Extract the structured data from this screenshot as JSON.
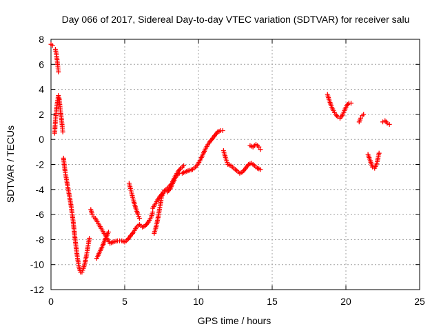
{
  "chart_data": {
    "type": "scatter",
    "title": "Day 066 of 2017, Sidereal Day-to-day VTEC variation (SDTVAR) for receiver salu",
    "xlabel": "GPS time / hours",
    "ylabel": "SDTVAR / TECUs",
    "xlim": [
      0,
      25
    ],
    "ylim": [
      -12,
      8
    ],
    "xticks": [
      0,
      5,
      10,
      15,
      20,
      25
    ],
    "yticks": [
      -12,
      -10,
      -8,
      -6,
      -4,
      -2,
      0,
      2,
      4,
      6,
      8
    ],
    "grid": true,
    "marker": "plus",
    "color": "#ff0000",
    "series": [
      {
        "segments": [
          [
            [
              0.0,
              7.6
            ],
            [
              0.1,
              7.5
            ]
          ],
          [
            [
              0.3,
              7.2
            ],
            [
              0.35,
              6.9
            ],
            [
              0.4,
              6.5
            ],
            [
              0.45,
              6.0
            ],
            [
              0.5,
              5.4
            ]
          ],
          [
            [
              0.25,
              0.5
            ],
            [
              0.3,
              1.5
            ],
            [
              0.35,
              2.2
            ],
            [
              0.4,
              2.7
            ],
            [
              0.45,
              3.1
            ],
            [
              0.5,
              3.5
            ],
            [
              0.55,
              3.3
            ],
            [
              0.6,
              2.8
            ],
            [
              0.65,
              2.2
            ],
            [
              0.7,
              1.7
            ],
            [
              0.75,
              1.2
            ],
            [
              0.8,
              0.6
            ]
          ],
          [
            [
              0.85,
              -1.5
            ],
            [
              0.95,
              -2.5
            ],
            [
              1.05,
              -3.2
            ],
            [
              1.2,
              -4.2
            ],
            [
              1.35,
              -5.2
            ],
            [
              1.5,
              -6.5
            ],
            [
              1.6,
              -7.6
            ],
            [
              1.7,
              -8.6
            ],
            [
              1.8,
              -9.5
            ],
            [
              1.9,
              -10.2
            ],
            [
              2.0,
              -10.6
            ],
            [
              2.1,
              -10.6
            ],
            [
              2.2,
              -10.3
            ],
            [
              2.3,
              -9.9
            ],
            [
              2.4,
              -9.3
            ],
            [
              2.5,
              -8.6
            ],
            [
              2.6,
              -7.9
            ]
          ],
          [
            [
              2.7,
              -5.6
            ],
            [
              2.8,
              -6.0
            ],
            [
              2.9,
              -6.2
            ],
            [
              3.0,
              -6.3
            ],
            [
              3.2,
              -6.7
            ],
            [
              3.4,
              -7.1
            ],
            [
              3.6,
              -7.5
            ],
            [
              3.8,
              -7.9
            ],
            [
              4.0,
              -8.3
            ],
            [
              4.2,
              -8.2
            ],
            [
              4.5,
              -8.1
            ],
            [
              4.8,
              -8.1
            ],
            [
              5.0,
              -8.2
            ],
            [
              5.2,
              -8.0
            ],
            [
              5.4,
              -7.7
            ],
            [
              5.6,
              -7.4
            ],
            [
              5.8,
              -7.0
            ],
            [
              6.0,
              -6.8
            ],
            [
              6.2,
              -7.0
            ],
            [
              6.4,
              -6.9
            ],
            [
              6.6,
              -6.6
            ],
            [
              6.8,
              -6.2
            ],
            [
              6.9,
              -5.8
            ]
          ],
          [
            [
              3.1,
              -9.5
            ],
            [
              3.3,
              -9.0
            ],
            [
              3.5,
              -8.5
            ],
            [
              3.7,
              -7.9
            ],
            [
              3.9,
              -7.4
            ]
          ],
          [
            [
              5.3,
              -3.5
            ],
            [
              5.45,
              -4.2
            ],
            [
              5.6,
              -4.9
            ],
            [
              5.75,
              -5.5
            ],
            [
              5.9,
              -6.0
            ],
            [
              6.0,
              -6.3
            ]
          ],
          [
            [
              7.0,
              -7.5
            ],
            [
              7.1,
              -7.1
            ],
            [
              7.2,
              -6.6
            ],
            [
              7.3,
              -6.0
            ],
            [
              7.4,
              -5.3
            ],
            [
              7.5,
              -4.6
            ],
            [
              7.6,
              -4.2
            ],
            [
              7.8,
              -4.0
            ],
            [
              8.0,
              -3.8
            ],
            [
              8.2,
              -3.5
            ],
            [
              8.4,
              -3.0
            ],
            [
              8.6,
              -2.6
            ],
            [
              8.8,
              -2.3
            ],
            [
              9.0,
              -2.1
            ]
          ],
          [
            [
              6.9,
              -5.5
            ],
            [
              7.1,
              -5.1
            ],
            [
              7.3,
              -4.7
            ],
            [
              7.5,
              -4.4
            ],
            [
              7.7,
              -4.2
            ],
            [
              7.9,
              -4.2
            ],
            [
              8.1,
              -3.9
            ],
            [
              8.3,
              -3.4
            ],
            [
              8.5,
              -2.9
            ],
            [
              8.7,
              -2.7
            ],
            [
              8.9,
              -2.7
            ],
            [
              9.1,
              -2.6
            ],
            [
              9.3,
              -2.5
            ],
            [
              9.6,
              -2.4
            ],
            [
              9.9,
              -2.1
            ],
            [
              10.1,
              -1.7
            ],
            [
              10.3,
              -1.2
            ],
            [
              10.5,
              -0.7
            ],
            [
              10.7,
              -0.3
            ],
            [
              10.9,
              0.0
            ],
            [
              11.1,
              0.3
            ],
            [
              11.3,
              0.6
            ],
            [
              11.5,
              0.7
            ],
            [
              11.65,
              0.7
            ]
          ],
          [
            [
              11.7,
              -0.9
            ],
            [
              11.8,
              -1.3
            ],
            [
              11.9,
              -1.7
            ],
            [
              12.0,
              -2.0
            ],
            [
              12.2,
              -2.1
            ],
            [
              12.4,
              -2.3
            ],
            [
              12.6,
              -2.5
            ],
            [
              12.8,
              -2.7
            ],
            [
              13.0,
              -2.6
            ],
            [
              13.2,
              -2.3
            ],
            [
              13.4,
              -2.0
            ],
            [
              13.6,
              -1.9
            ],
            [
              13.8,
              -2.1
            ],
            [
              14.0,
              -2.3
            ],
            [
              14.2,
              -2.4
            ]
          ],
          [
            [
              13.5,
              -0.5
            ],
            [
              13.7,
              -0.6
            ],
            [
              13.9,
              -0.4
            ],
            [
              14.1,
              -0.6
            ],
            [
              14.2,
              -0.8
            ]
          ],
          [
            [
              18.75,
              3.6
            ],
            [
              18.85,
              3.2
            ],
            [
              19.0,
              2.7
            ],
            [
              19.15,
              2.3
            ],
            [
              19.3,
              2.0
            ],
            [
              19.45,
              1.8
            ],
            [
              19.6,
              1.7
            ],
            [
              19.75,
              1.9
            ],
            [
              19.9,
              2.3
            ],
            [
              20.05,
              2.7
            ],
            [
              20.2,
              2.9
            ],
            [
              20.35,
              2.9
            ]
          ],
          [
            [
              20.9,
              1.4
            ],
            [
              21.0,
              1.7
            ],
            [
              21.1,
              1.9
            ],
            [
              21.2,
              2.0
            ]
          ],
          [
            [
              21.5,
              -1.2
            ],
            [
              21.65,
              -1.7
            ],
            [
              21.8,
              -2.2
            ],
            [
              21.95,
              -2.3
            ],
            [
              22.1,
              -1.9
            ],
            [
              22.25,
              -1.1
            ]
          ],
          [
            [
              22.5,
              1.4
            ],
            [
              22.65,
              1.5
            ],
            [
              22.8,
              1.3
            ],
            [
              22.95,
              1.2
            ]
          ]
        ]
      }
    ]
  }
}
